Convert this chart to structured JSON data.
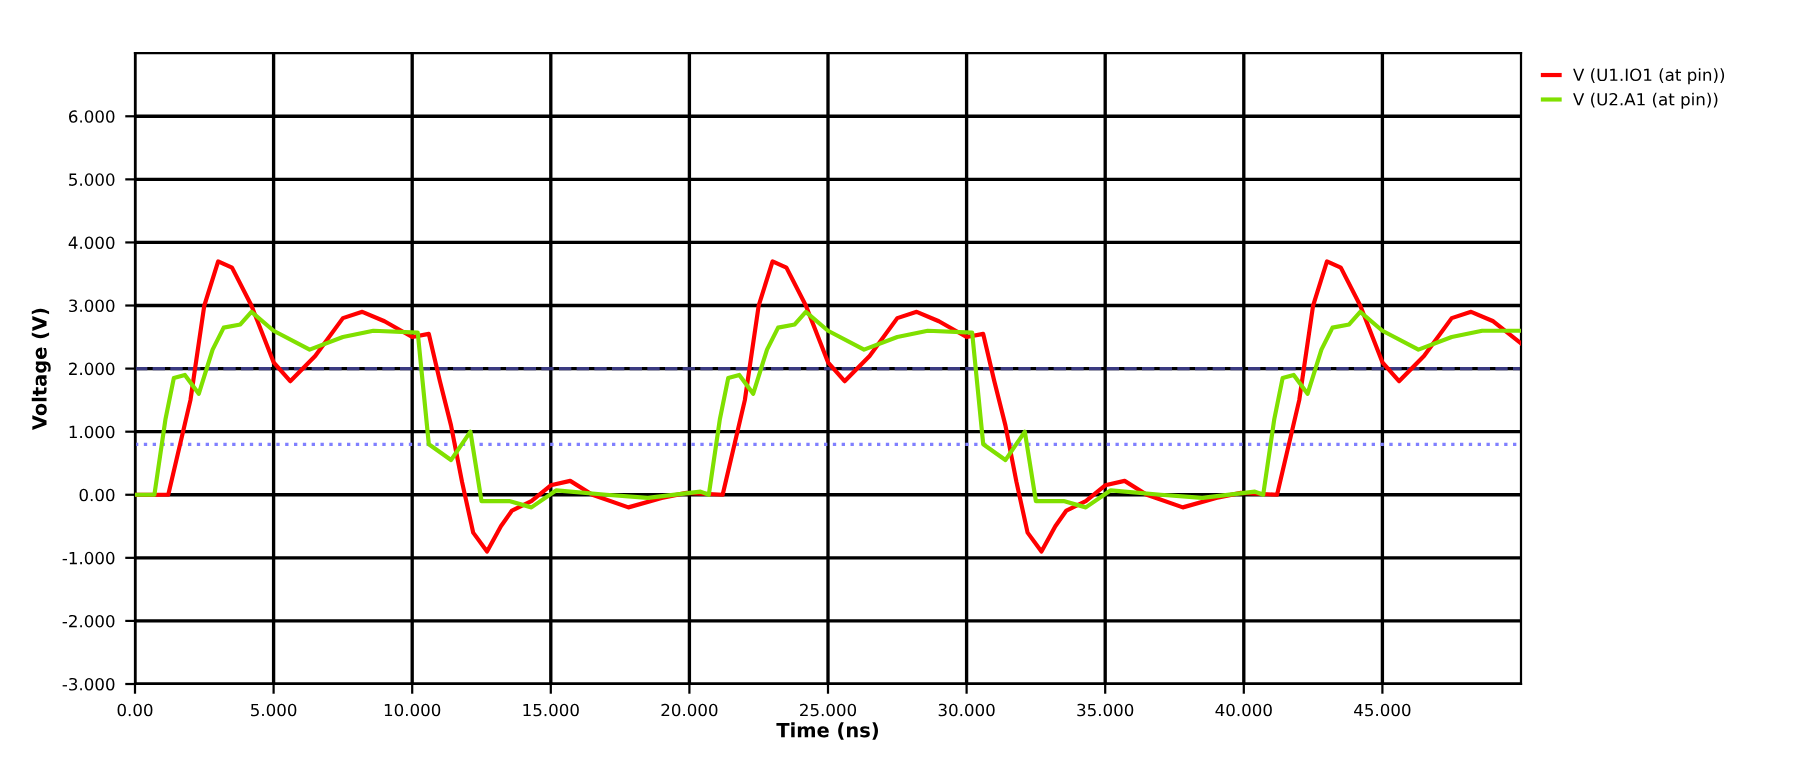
{
  "chart_data": {
    "type": "line",
    "xlabel": "Time (ns)",
    "ylabel": "Voltage (V)",
    "xlim": [
      0,
      50
    ],
    "xticks": [
      {
        "value": 0,
        "label": "0.00"
      },
      {
        "value": 5,
        "label": "5.000"
      },
      {
        "value": 10,
        "label": "10.000"
      },
      {
        "value": 15,
        "label": "15.000"
      },
      {
        "value": 20,
        "label": "20.000"
      },
      {
        "value": 25,
        "label": "25.000"
      },
      {
        "value": 30,
        "label": "30.000"
      },
      {
        "value": 35,
        "label": "35.000"
      },
      {
        "value": 40,
        "label": "40.000"
      },
      {
        "value": 45,
        "label": "45.000"
      }
    ],
    "ylim": [
      -3,
      7
    ],
    "yticks": [
      {
        "value": -3,
        "label": "-3.000"
      },
      {
        "value": -2,
        "label": "-2.000"
      },
      {
        "value": -1,
        "label": "-1.000"
      },
      {
        "value": 0,
        "label": "0.00"
      },
      {
        "value": 1,
        "label": "1.000"
      },
      {
        "value": 2,
        "label": "2.000"
      },
      {
        "value": 3,
        "label": "3.000"
      },
      {
        "value": 4,
        "label": "4.000"
      },
      {
        "value": 5,
        "label": "5.000"
      },
      {
        "value": 6,
        "label": "6.000"
      }
    ],
    "grid": true,
    "legend": "top right",
    "marker": "none",
    "line_style": "solid",
    "ref_lines": [
      {
        "axis": "y",
        "value": 2,
        "color": "#3a3a80",
        "line_style": "dashed"
      },
      {
        "axis": "y",
        "value": 0.8,
        "color": "#8080ff",
        "line_style": "dotted"
      }
    ],
    "series": [
      {
        "name": "V (U1.IO1 (at pin))",
        "color": "#ff0000",
        "x": [
          0,
          1.2,
          2.0,
          2.5,
          3.0,
          3.5,
          4.2,
          5.0,
          5.6,
          6.5,
          7.5,
          8.2,
          9.0,
          10.0,
          10.6,
          11.0,
          11.4,
          11.8,
          12.2,
          12.7,
          13.2,
          13.6,
          14.3,
          15.0,
          15.7,
          16.5,
          17.8,
          19.0,
          19.9,
          21.2,
          22.0,
          22.5,
          23.0,
          23.5,
          24.2,
          25.0,
          25.6,
          26.5,
          27.5,
          28.2,
          29.0,
          30.0,
          30.6,
          31.0,
          31.4,
          31.8,
          32.2,
          32.7,
          33.2,
          33.6,
          34.3,
          35.0,
          35.7,
          36.5,
          37.8,
          39.0,
          39.9,
          41.2,
          42.0,
          42.5,
          43.0,
          43.5,
          44.2,
          45.0,
          45.6,
          46.5,
          47.5,
          48.2,
          49.0,
          50.0
        ],
        "values": [
          0,
          0,
          1.5,
          3.0,
          3.7,
          3.6,
          3.0,
          2.1,
          1.8,
          2.2,
          2.8,
          2.9,
          2.75,
          2.5,
          2.55,
          1.8,
          1.1,
          0.2,
          -0.6,
          -0.9,
          -0.5,
          -0.25,
          -0.1,
          0.15,
          0.22,
          0.0,
          -0.2,
          -0.05,
          0.03,
          0,
          1.5,
          3.0,
          3.7,
          3.6,
          3.0,
          2.1,
          1.8,
          2.2,
          2.8,
          2.9,
          2.75,
          2.5,
          2.55,
          1.8,
          1.1,
          0.2,
          -0.6,
          -0.9,
          -0.5,
          -0.25,
          -0.1,
          0.15,
          0.22,
          0.0,
          -0.2,
          -0.05,
          0.03,
          0,
          1.5,
          3.0,
          3.7,
          3.6,
          3.0,
          2.1,
          1.8,
          2.2,
          2.8,
          2.9,
          2.75,
          2.4
        ]
      },
      {
        "name": "V (U2.A1 (at pin))",
        "color": "#80e000",
        "x": [
          0,
          0.7,
          1.1,
          1.4,
          1.8,
          2.3,
          2.8,
          3.2,
          3.8,
          4.2,
          5.0,
          6.3,
          7.5,
          8.6,
          10.2,
          10.6,
          11.4,
          12.1,
          12.5,
          13.5,
          14.3,
          15.2,
          17.0,
          18.5,
          20.4,
          20.7,
          21.1,
          21.4,
          21.8,
          22.3,
          22.8,
          23.2,
          23.8,
          24.2,
          25.0,
          26.3,
          27.5,
          28.6,
          30.2,
          30.6,
          31.4,
          32.1,
          32.5,
          33.5,
          34.3,
          35.2,
          37.0,
          38.5,
          40.4,
          40.7,
          41.1,
          41.4,
          41.8,
          42.3,
          42.8,
          43.2,
          43.8,
          44.2,
          45.0,
          46.3,
          47.5,
          48.6,
          50.0
        ],
        "values": [
          0,
          0,
          1.2,
          1.85,
          1.9,
          1.6,
          2.3,
          2.65,
          2.7,
          2.9,
          2.6,
          2.3,
          2.5,
          2.6,
          2.57,
          0.8,
          0.55,
          1.0,
          -0.1,
          -0.1,
          -0.2,
          0.07,
          0.0,
          -0.05,
          0.05,
          0,
          1.2,
          1.85,
          1.9,
          1.6,
          2.3,
          2.65,
          2.7,
          2.9,
          2.6,
          2.3,
          2.5,
          2.6,
          2.57,
          0.8,
          0.55,
          1.0,
          -0.1,
          -0.1,
          -0.2,
          0.07,
          0.0,
          -0.05,
          0.05,
          0,
          1.2,
          1.85,
          1.9,
          1.6,
          2.3,
          2.65,
          2.7,
          2.9,
          2.6,
          2.3,
          2.5,
          2.6,
          2.6
        ]
      }
    ]
  }
}
